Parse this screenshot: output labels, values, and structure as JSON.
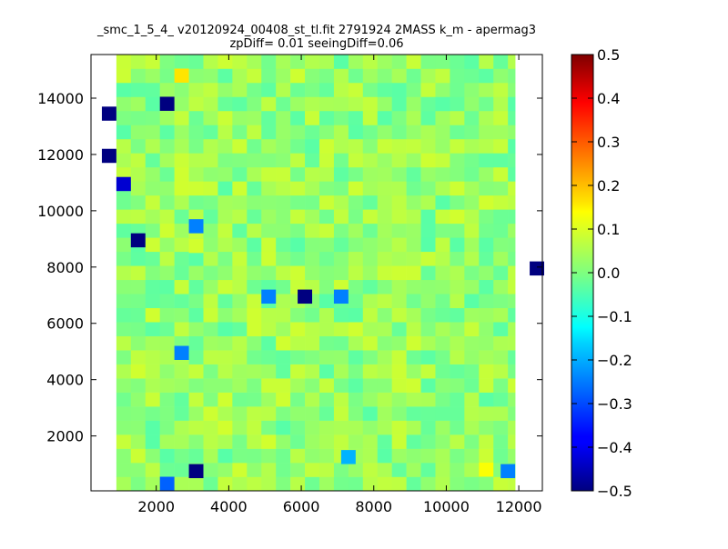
{
  "chart_data": {
    "type": "heatmap",
    "title_line1": "_smc_1_5_4_ v20120924_00408_st_tl.fit 2791924 2MASS k_m - apermag3",
    "title_line2": "zpDiff= 0.01 seeingDiff=0.06",
    "xlim": [
      200,
      12650
    ],
    "ylim": [
      50,
      15550
    ],
    "x_ticks": [
      2000,
      4000,
      6000,
      8000,
      10000,
      12000
    ],
    "y_ticks": [
      2000,
      4000,
      6000,
      8000,
      10000,
      12000,
      14000
    ],
    "grid": false,
    "colormap": "jet",
    "colorbar": {
      "range": [
        -0.5,
        0.5
      ],
      "ticks": [
        0.5,
        0.4,
        0.3,
        0.2,
        0.1,
        0.0,
        -0.1,
        -0.2,
        -0.3,
        -0.4,
        -0.5
      ],
      "tick_labels": [
        "0.5",
        "0.4",
        "0.3",
        "0.2",
        "0.1",
        "0.0",
        "−0.1",
        "−0.2",
        "−0.3",
        "−0.4",
        "−0.5"
      ]
    },
    "grid_cells": {
      "x_start": 900,
      "x_step": 400,
      "cols": 28,
      "y_start": 50,
      "y_step": 500,
      "rows": 31
    },
    "cell_default_value": 0.02,
    "anomalies": [
      {
        "x": 2300,
        "y": 13800,
        "value": -0.5
      },
      {
        "x": 700,
        "y": 13450,
        "value": -0.5
      },
      {
        "x": 700,
        "y": 11950,
        "value": -0.5
      },
      {
        "x": 1100,
        "y": 10950,
        "value": -0.42
      },
      {
        "x": 1500,
        "y": 8950,
        "value": -0.5
      },
      {
        "x": 6100,
        "y": 6950,
        "value": -0.5
      },
      {
        "x": 12500,
        "y": 7950,
        "value": -0.5
      },
      {
        "x": 3100,
        "y": 750,
        "value": -0.5
      },
      {
        "x": 2300,
        "y": 300,
        "value": -0.28
      },
      {
        "x": 3100,
        "y": 9450,
        "value": -0.25
      },
      {
        "x": 2700,
        "y": 4950,
        "value": -0.25
      },
      {
        "x": 5100,
        "y": 6950,
        "value": -0.25
      },
      {
        "x": 7100,
        "y": 6950,
        "value": -0.25
      },
      {
        "x": 11700,
        "y": 750,
        "value": -0.25
      },
      {
        "x": 7300,
        "y": 1250,
        "value": -0.2
      },
      {
        "x": 2700,
        "y": 14800,
        "value": 0.15
      },
      {
        "x": 3100,
        "y": 8750,
        "value": 0.08
      },
      {
        "x": 11100,
        "y": 800,
        "value": 0.12
      }
    ]
  }
}
